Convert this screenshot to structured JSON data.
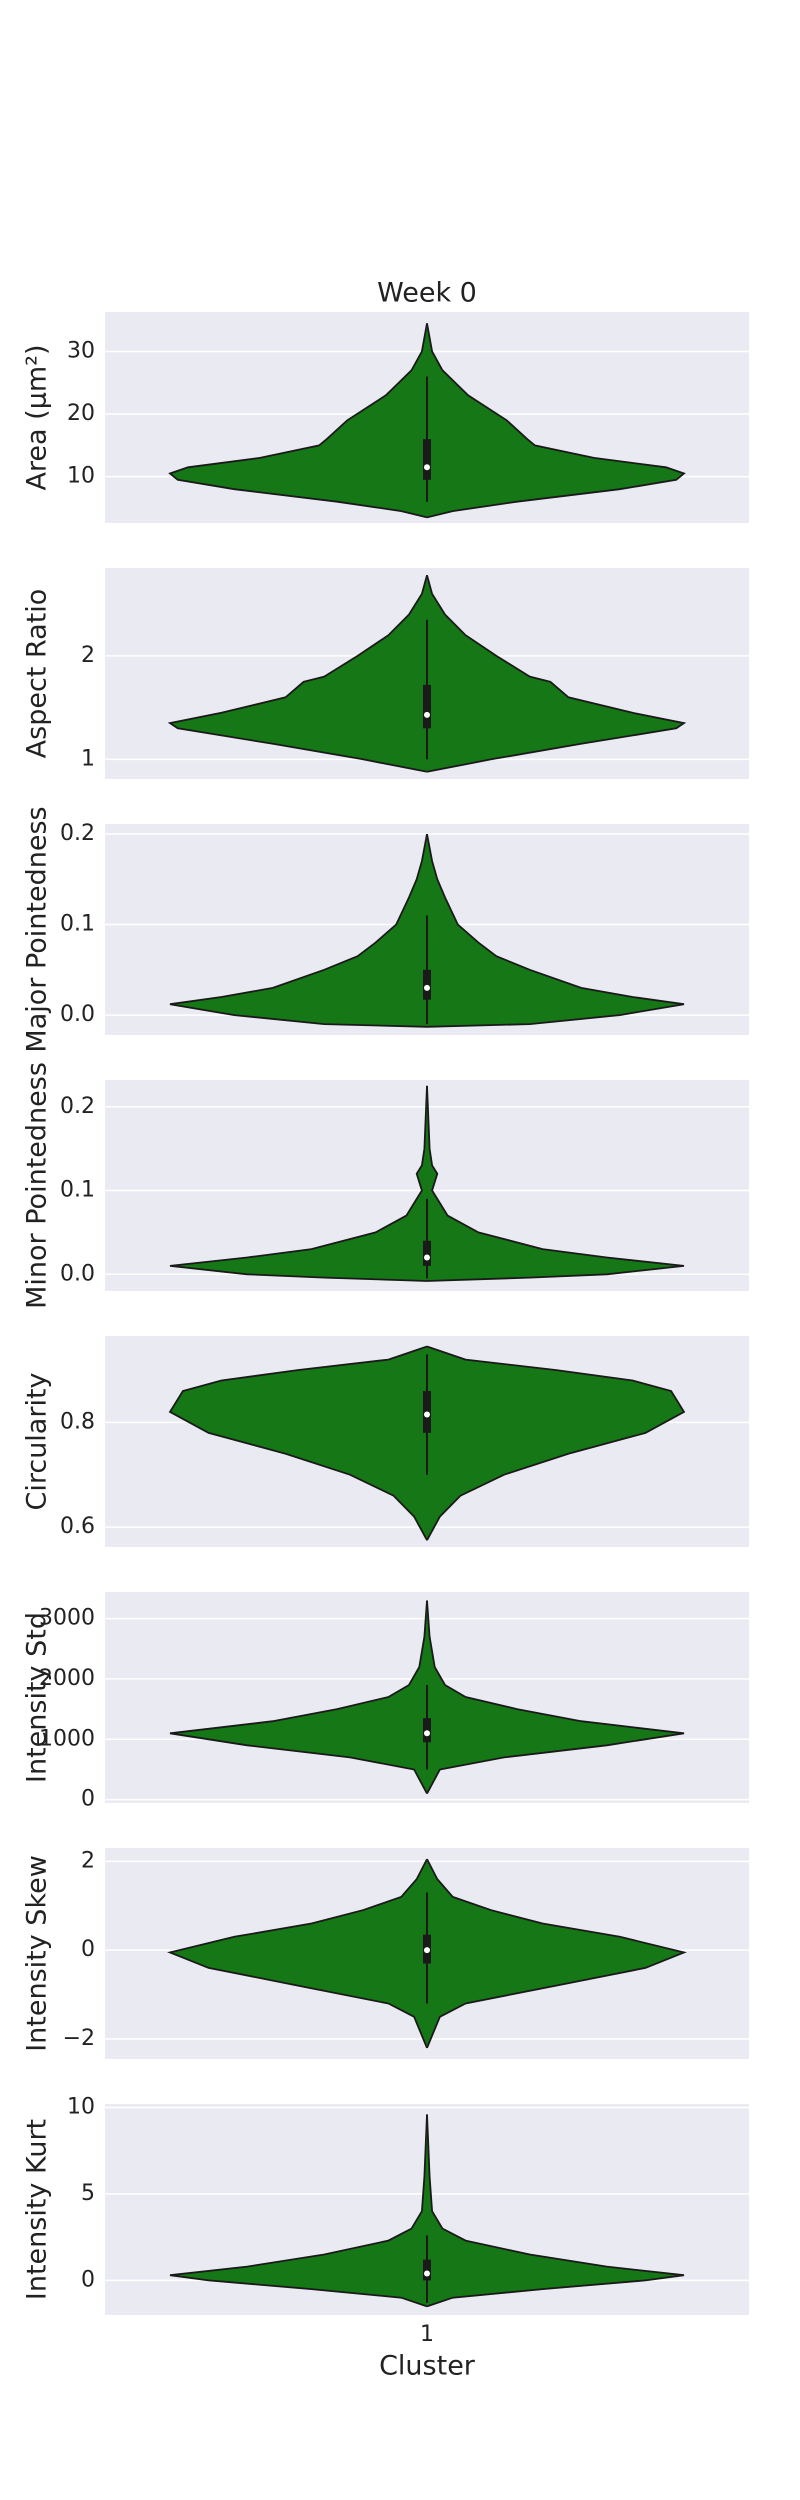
{
  "chart_data": [
    {
      "type": "violin",
      "title": "Week 0",
      "ylabel": "Area (μm²)",
      "color": "#157715",
      "grid": true,
      "ylim": [
        2.6,
        36.3
      ],
      "yticks": [
        10,
        20,
        30
      ],
      "violin": {
        "y": [
          3.5,
          4.5,
          6,
          8,
          9.5,
          10.5,
          11.5,
          13,
          15,
          16,
          19,
          23,
          27,
          30,
          34.5
        ],
        "density": [
          0,
          0.1,
          0.35,
          0.75,
          0.97,
          1,
          0.93,
          0.65,
          0.42,
          0.39,
          0.31,
          0.16,
          0.06,
          0.02,
          0
        ]
      },
      "box": {
        "whisker_low": 6,
        "q1": 9.5,
        "median": 11.5,
        "q3": 16,
        "whisker_high": 26
      }
    },
    {
      "type": "violin",
      "ylabel": "Aspect Ratio",
      "color": "#157715",
      "grid": true,
      "ylim": [
        0.81,
        2.85
      ],
      "yticks": [
        1,
        2
      ],
      "violin": {
        "y": [
          0.88,
          1.0,
          1.15,
          1.3,
          1.35,
          1.45,
          1.6,
          1.75,
          1.8,
          2.0,
          2.2,
          2.4,
          2.6,
          2.78
        ],
        "density": [
          0,
          0.25,
          0.6,
          0.97,
          1,
          0.8,
          0.55,
          0.48,
          0.4,
          0.27,
          0.15,
          0.07,
          0.02,
          0
        ]
      },
      "box": {
        "whisker_low": 1.0,
        "q1": 1.3,
        "median": 1.43,
        "q3": 1.72,
        "whisker_high": 2.35
      }
    },
    {
      "type": "violin",
      "ylabel": "Major Pointedness",
      "color": "#157715",
      "grid": true,
      "ylim": [
        -0.022,
        0.211
      ],
      "yticks": [
        {
          "value": 0,
          "label": "0.0"
        },
        0.1,
        0.2
      ],
      "violin": {
        "y": [
          -0.013,
          -0.01,
          0.0,
          0.012,
          0.02,
          0.03,
          0.05,
          0.065,
          0.08,
          0.1,
          0.13,
          0.15,
          0.17,
          0.2
        ],
        "density": [
          0,
          0.4,
          0.75,
          1,
          0.8,
          0.6,
          0.4,
          0.27,
          0.2,
          0.12,
          0.07,
          0.04,
          0.02,
          0
        ]
      },
      "box": {
        "whisker_low": -0.01,
        "q1": 0.017,
        "median": 0.03,
        "q3": 0.05,
        "whisker_high": 0.11
      }
    },
    {
      "type": "violin",
      "ylabel": "Minor Pointedness",
      "color": "#157715",
      "grid": true,
      "ylim": [
        -0.02,
        0.232
      ],
      "yticks": [
        {
          "value": 0,
          "label": "0.0"
        },
        0.1,
        0.2
      ],
      "violin": {
        "y": [
          -0.008,
          -0.004,
          0.0,
          0.01,
          0.02,
          0.03,
          0.05,
          0.07,
          0.09,
          0.1,
          0.12,
          0.13,
          0.15,
          0.225
        ],
        "density": [
          0,
          0.4,
          0.7,
          1,
          0.7,
          0.45,
          0.2,
          0.08,
          0.04,
          0.02,
          0.04,
          0.02,
          0.01,
          0
        ]
      },
      "box": {
        "whisker_low": -0.005,
        "q1": 0.01,
        "median": 0.02,
        "q3": 0.04,
        "whisker_high": 0.09
      }
    },
    {
      "type": "violin",
      "ylabel": "Circularity",
      "color": "#157715",
      "grid": true,
      "ylim": [
        0.562,
        0.965
      ],
      "yticks": [
        0.6,
        0.8
      ],
      "violin": {
        "y": [
          0.575,
          0.62,
          0.66,
          0.7,
          0.74,
          0.78,
          0.82,
          0.86,
          0.88,
          0.9,
          0.92,
          0.945
        ],
        "density": [
          0,
          0.05,
          0.13,
          0.3,
          0.55,
          0.85,
          1,
          0.95,
          0.8,
          0.5,
          0.15,
          0
        ]
      },
      "box": {
        "whisker_low": 0.7,
        "q1": 0.78,
        "median": 0.815,
        "q3": 0.86,
        "whisker_high": 0.93
      }
    },
    {
      "type": "violin",
      "ylabel": "Intensity Std",
      "color": "#157715",
      "grid": true,
      "ylim": [
        -55,
        3440
      ],
      "yticks": [
        0,
        1000,
        2000,
        3000
      ],
      "violin": {
        "y": [
          100,
          500,
          700,
          900,
          1100,
          1300,
          1500,
          1700,
          1900,
          2200,
          2700,
          3300
        ],
        "density": [
          0,
          0.05,
          0.3,
          0.7,
          1,
          0.6,
          0.35,
          0.15,
          0.07,
          0.03,
          0.01,
          0
        ]
      },
      "box": {
        "whisker_low": 500,
        "q1": 950,
        "median": 1100,
        "q3": 1350,
        "whisker_high": 1900
      }
    },
    {
      "type": "violin",
      "ylabel": "Intensity Skew",
      "color": "#157715",
      "grid": true,
      "ylim": [
        -2.45,
        2.3
      ],
      "yticks": [
        {
          "value": -2,
          "label": "−2"
        },
        0,
        2
      ],
      "violin": {
        "y": [
          -2.2,
          -1.5,
          -1.2,
          -0.8,
          -0.4,
          -0.05,
          0.3,
          0.6,
          0.9,
          1.2,
          1.6,
          2.05
        ],
        "density": [
          0,
          0.05,
          0.15,
          0.5,
          0.85,
          1,
          0.75,
          0.45,
          0.25,
          0.1,
          0.04,
          0
        ]
      },
      "box": {
        "whisker_low": -1.2,
        "q1": -0.3,
        "median": 0,
        "q3": 0.35,
        "whisker_high": 1.3
      }
    },
    {
      "type": "violin",
      "ylabel": "Intensity Kurt",
      "xlabel": "Cluster",
      "categories": [
        "1"
      ],
      "color": "#157715",
      "grid": true,
      "ylim": [
        -2.0,
        10.2
      ],
      "yticks": [
        0,
        5,
        10
      ],
      "violin": {
        "y": [
          -1.5,
          -1.0,
          -0.5,
          0,
          0.3,
          0.8,
          1.5,
          2.3,
          3,
          4,
          6,
          9.6
        ],
        "density": [
          0,
          0.1,
          0.45,
          0.85,
          1,
          0.7,
          0.4,
          0.15,
          0.06,
          0.02,
          0.01,
          0
        ]
      },
      "box": {
        "whisker_low": -1.3,
        "q1": 0,
        "median": 0.4,
        "q3": 1.2,
        "whisker_high": 2.6
      }
    }
  ]
}
